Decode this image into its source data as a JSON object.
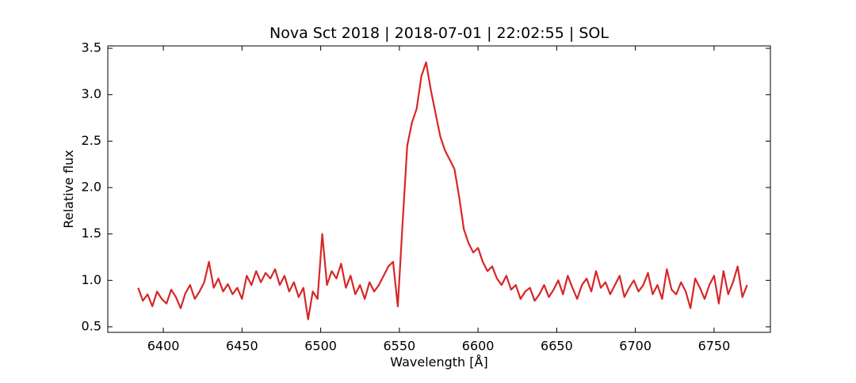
{
  "chart_data": {
    "type": "line",
    "title": "Nova Sct 2018 | 2018-07-01 | 22:02:55 | SOL",
    "x_label": "Wavelength [Å]",
    "y_label": "Relative flux",
    "x": [
      6384,
      6387,
      6390,
      6393,
      6396,
      6399,
      6402,
      6405,
      6408,
      6411,
      6414,
      6417,
      6420,
      6423,
      6426,
      6429,
      6432,
      6435,
      6438,
      6441,
      6444,
      6447,
      6450,
      6453,
      6456,
      6459,
      6462,
      6465,
      6468,
      6471,
      6474,
      6477,
      6480,
      6483,
      6486,
      6489,
      6492,
      6495,
      6498,
      6501,
      6504,
      6507,
      6510,
      6513,
      6516,
      6519,
      6522,
      6525,
      6528,
      6531,
      6534,
      6537,
      6540,
      6543,
      6546,
      6549,
      6552,
      6555,
      6558,
      6561,
      6564,
      6567,
      6570,
      6573,
      6576,
      6579,
      6582,
      6585,
      6588,
      6591,
      6594,
      6597,
      6600,
      6603,
      6606,
      6609,
      6612,
      6615,
      6618,
      6621,
      6624,
      6627,
      6630,
      6633,
      6636,
      6639,
      6642,
      6645,
      6648,
      6651,
      6654,
      6657,
      6660,
      6663,
      6666,
      6669,
      6672,
      6675,
      6678,
      6681,
      6684,
      6687,
      6690,
      6693,
      6696,
      6699,
      6702,
      6705,
      6708,
      6711,
      6714,
      6717,
      6720,
      6723,
      6726,
      6729,
      6732,
      6735,
      6738,
      6741,
      6744,
      6747,
      6750,
      6753,
      6756,
      6759,
      6762,
      6765,
      6768,
      6771
    ],
    "series": [
      {
        "name": "flux",
        "color": "#d62728",
        "values": [
          0.92,
          0.78,
          0.85,
          0.72,
          0.88,
          0.8,
          0.75,
          0.9,
          0.82,
          0.7,
          0.86,
          0.95,
          0.8,
          0.88,
          0.98,
          1.2,
          0.92,
          1.02,
          0.88,
          0.96,
          0.85,
          0.92,
          0.8,
          1.05,
          0.95,
          1.1,
          0.98,
          1.08,
          1.02,
          1.12,
          0.95,
          1.05,
          0.88,
          0.98,
          0.82,
          0.92,
          0.58,
          0.88,
          0.8,
          1.5,
          0.95,
          1.1,
          1.02,
          1.18,
          0.92,
          1.05,
          0.85,
          0.95,
          0.8,
          0.98,
          0.88,
          0.95,
          1.05,
          1.15,
          1.2,
          0.72,
          1.6,
          2.45,
          2.7,
          2.85,
          3.2,
          3.35,
          3.05,
          2.8,
          2.55,
          2.4,
          2.3,
          2.2,
          1.9,
          1.55,
          1.4,
          1.3,
          1.35,
          1.2,
          1.1,
          1.15,
          1.02,
          0.95,
          1.05,
          0.9,
          0.95,
          0.8,
          0.88,
          0.92,
          0.78,
          0.85,
          0.95,
          0.82,
          0.9,
          1.0,
          0.85,
          1.05,
          0.92,
          0.8,
          0.95,
          1.02,
          0.88,
          1.1,
          0.92,
          0.98,
          0.85,
          0.95,
          1.05,
          0.82,
          0.92,
          1.0,
          0.88,
          0.95,
          1.08,
          0.85,
          0.95,
          0.8,
          1.12,
          0.9,
          0.85,
          0.98,
          0.88,
          0.7,
          1.02,
          0.92,
          0.8,
          0.95,
          1.05,
          0.75,
          1.1,
          0.85,
          0.98,
          1.15,
          0.82,
          0.95
        ]
      }
    ],
    "xlim": [
      6364.7,
      6785.8
    ],
    "ylim": [
      0.44,
      3.526
    ],
    "xticks": [
      6400,
      6450,
      6500,
      6550,
      6600,
      6650,
      6700,
      6750
    ],
    "yticks": [
      0.5,
      {
        "value": 1,
        "label": "1.0"
      },
      1.5,
      {
        "value": 2,
        "label": "2.0"
      },
      2.5,
      {
        "value": 3,
        "label": "3.0"
      },
      3.5
    ],
    "grid": false
  }
}
